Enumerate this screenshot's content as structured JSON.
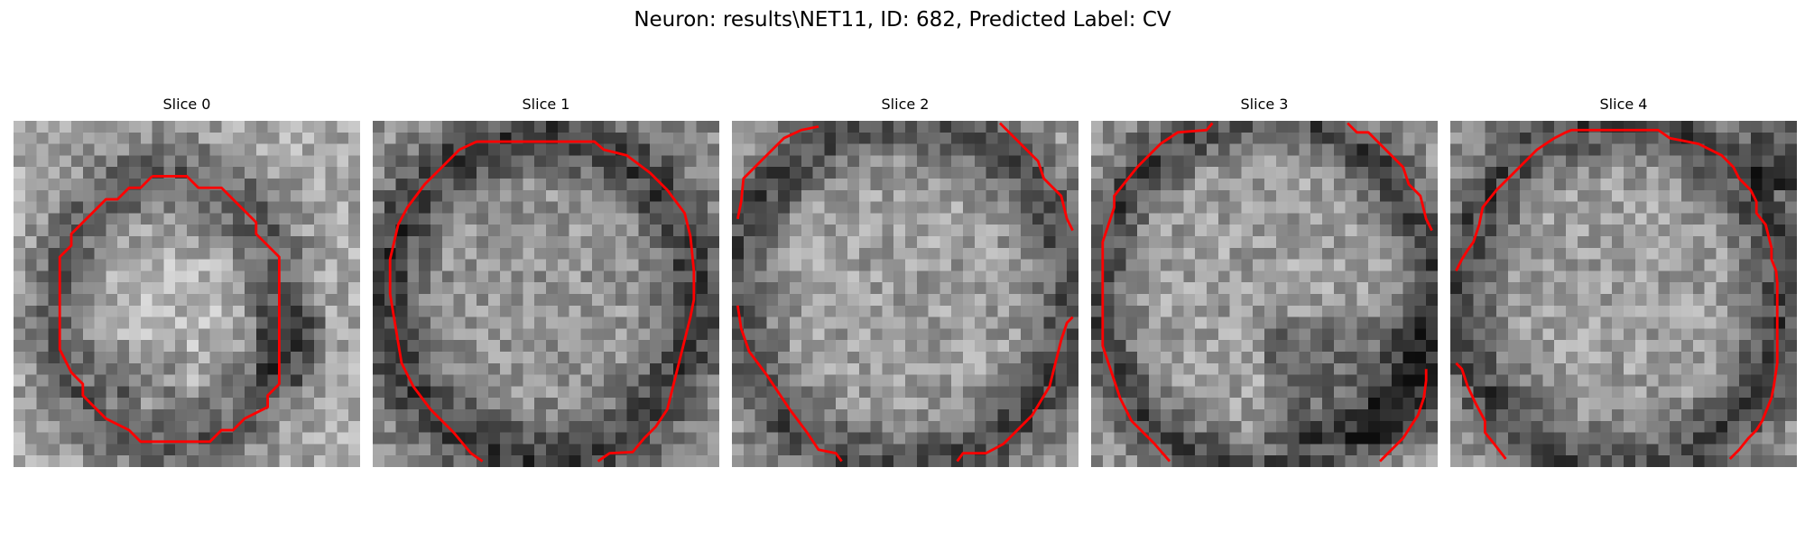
{
  "figure": {
    "title": "Neuron: results\\NET11, ID: 682, Predicted Label: CV",
    "contour_color": "#ff0000"
  },
  "slices": [
    {
      "title": "Slice 0"
    },
    {
      "title": "Slice 1"
    },
    {
      "title": "Slice 2"
    },
    {
      "title": "Slice 3"
    },
    {
      "title": "Slice 4"
    }
  ]
}
